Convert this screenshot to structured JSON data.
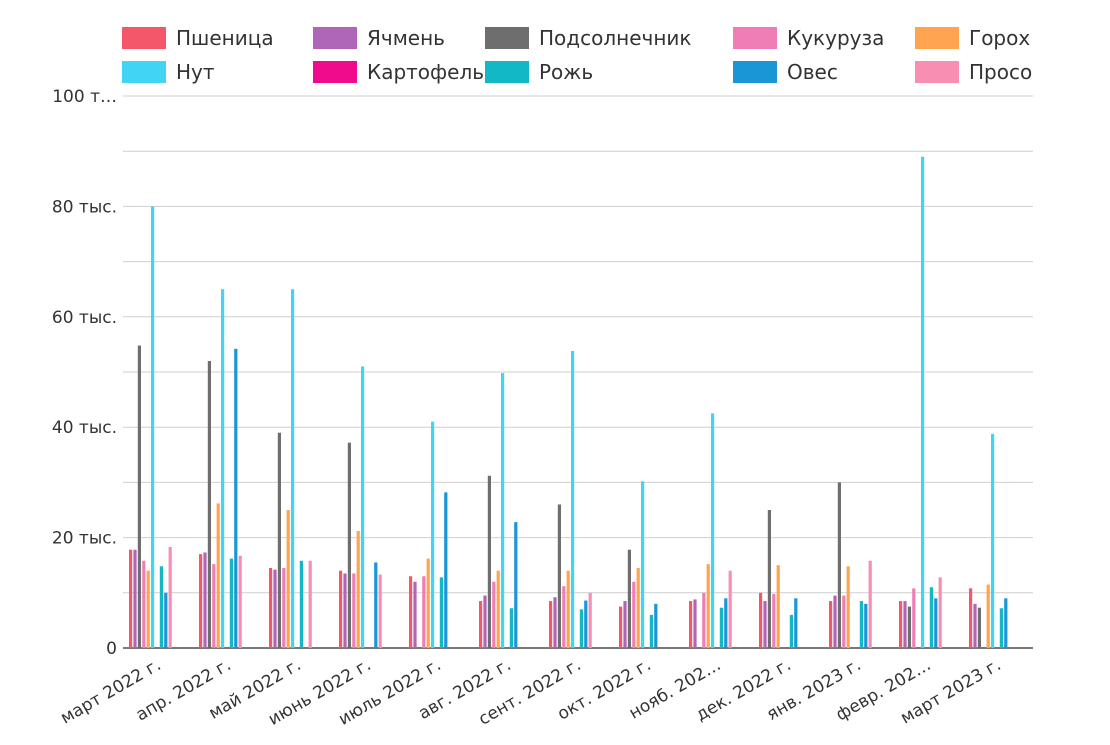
{
  "chart_data": {
    "type": "bar",
    "title": "",
    "xlabel": "",
    "ylabel": "",
    "ylim": [
      0,
      100000
    ],
    "grid": true,
    "legend_position": "top",
    "y_ticks": [
      {
        "value": 0,
        "label": "0"
      },
      {
        "value": 20000,
        "label": "20 тыс."
      },
      {
        "value": 40000,
        "label": "40 тыс."
      },
      {
        "value": 60000,
        "label": "60 тыс."
      },
      {
        "value": 80000,
        "label": "80 тыс."
      },
      {
        "value": 100000,
        "label": "100 т…"
      }
    ],
    "categories": [
      "март 2022 г.",
      "апр. 2022 г.",
      "май 2022 г.",
      "июнь 2022 г.",
      "июль 2022 г.",
      "авг. 2022 г.",
      "сент. 2022 г.",
      "окт. 2022 г.",
      "нояб. 202…",
      "дек. 2022 г.",
      "янв. 2023 г.",
      "февр. 202…",
      "март 2023 г."
    ],
    "series": [
      {
        "name": "Пшеница",
        "color": "#f4566a",
        "values": [
          17800,
          17000,
          14500,
          14000,
          13000,
          8500,
          8500,
          7500,
          8500,
          10000,
          8500,
          8500,
          10800
        ]
      },
      {
        "name": "Ячмень",
        "color": "#b066b8",
        "values": [
          17800,
          17300,
          14200,
          13500,
          12000,
          9500,
          9200,
          8500,
          8800,
          8500,
          9500,
          8500,
          8000
        ]
      },
      {
        "name": "Подсолнечник",
        "color": "#6e6e6e",
        "values": [
          54800,
          52000,
          39000,
          37200,
          0,
          31200,
          26000,
          17800,
          0,
          25000,
          30000,
          7500,
          7300
        ]
      },
      {
        "name": "Кукуруза",
        "color": "#f07eb6",
        "values": [
          15800,
          15200,
          14500,
          13500,
          13000,
          12000,
          11200,
          12000,
          10000,
          9800,
          9500,
          10800,
          0
        ]
      },
      {
        "name": "Горох",
        "color": "#ffa552",
        "values": [
          14000,
          26200,
          25000,
          21200,
          16200,
          14000,
          14000,
          14500,
          15200,
          15000,
          14800,
          0,
          11500
        ]
      },
      {
        "name": "Нут",
        "color": "#42d4f5",
        "values": [
          80000,
          65000,
          65000,
          51000,
          41000,
          49800,
          53800,
          30200,
          42500,
          0,
          0,
          89000,
          38800
        ]
      },
      {
        "name": "Картофель",
        "color": "#f00a8c",
        "values": [
          0,
          0,
          0,
          0,
          0,
          0,
          0,
          0,
          0,
          0,
          0,
          0,
          0
        ]
      },
      {
        "name": "Рожь",
        "color": "#13b8c7",
        "values": [
          14800,
          16200,
          15800,
          0,
          12800,
          7200,
          7000,
          6000,
          7300,
          6000,
          8500,
          11000,
          7200
        ]
      },
      {
        "name": "Овес",
        "color": "#1a96d6",
        "values": [
          10000,
          54200,
          0,
          15500,
          28200,
          22800,
          8600,
          8000,
          9000,
          9000,
          8000,
          9000,
          9000
        ]
      },
      {
        "name": "Просо",
        "color": "#f88fb3",
        "values": [
          18300,
          16700,
          15800,
          13300,
          0,
          0,
          10000,
          0,
          14000,
          0,
          15800,
          12800,
          0
        ]
      }
    ]
  }
}
